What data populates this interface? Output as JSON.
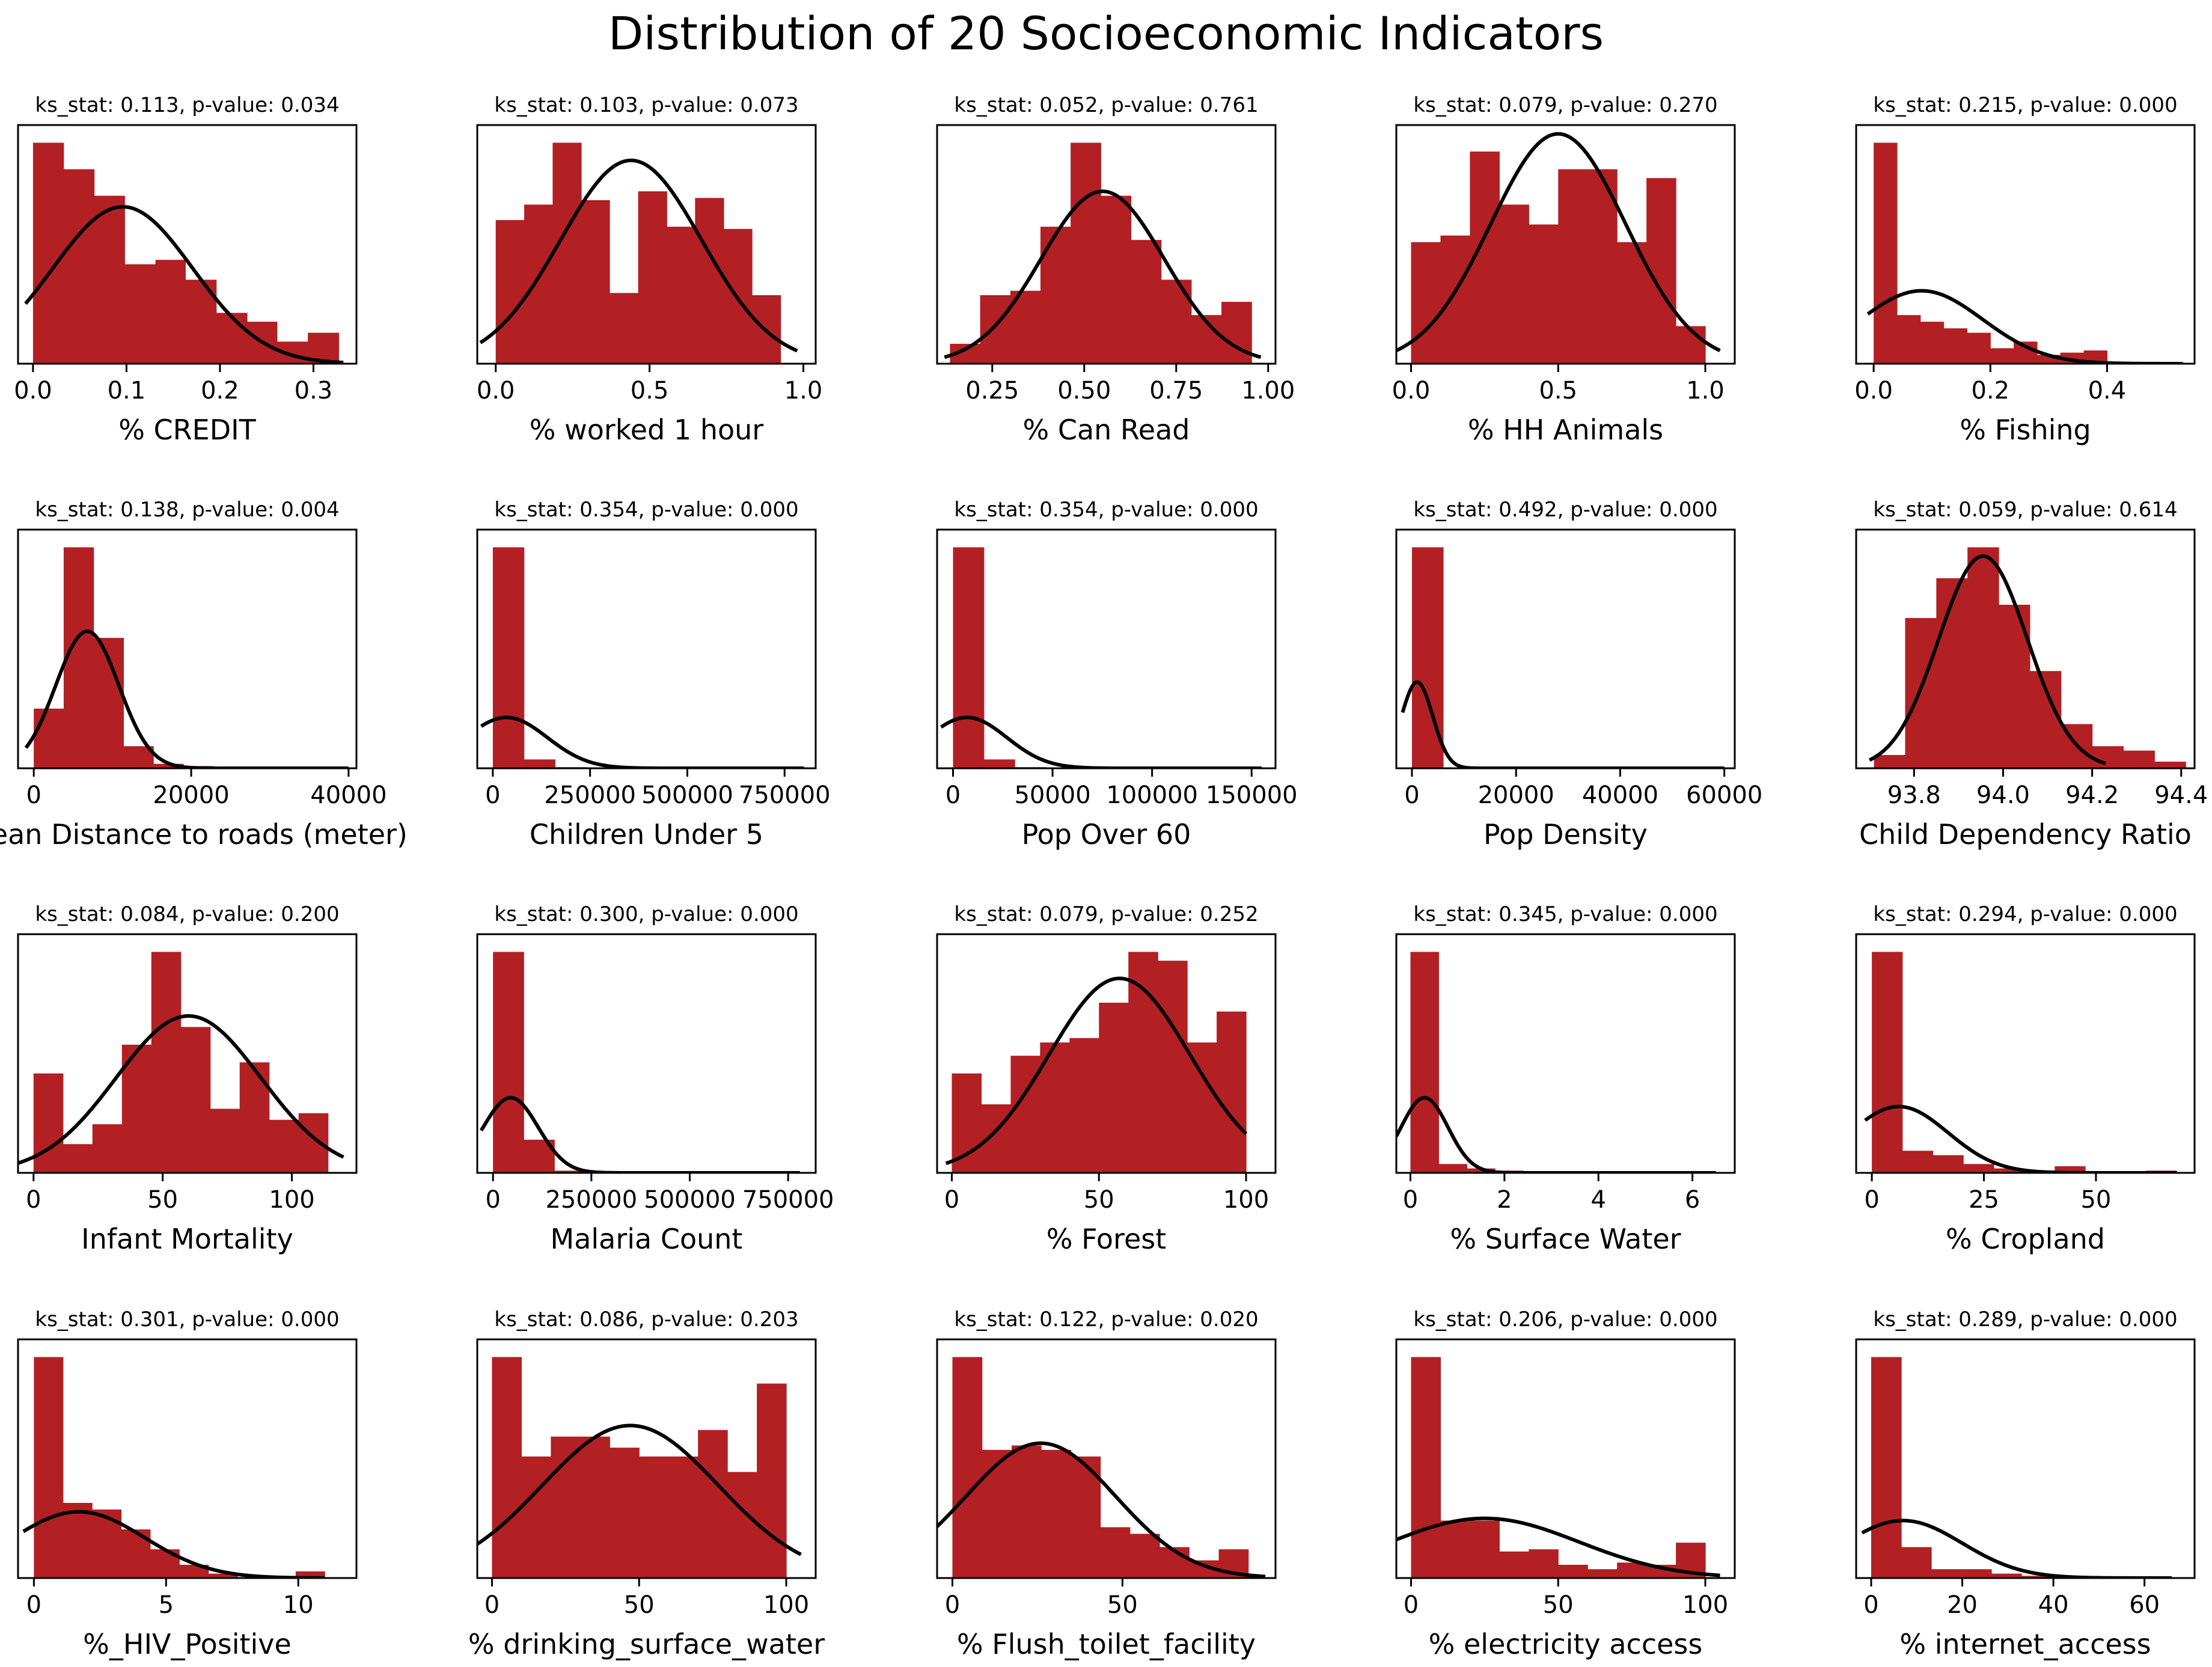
{
  "figure_title": "Distribution of 20 Socioeconomic Indicators",
  "colors": {
    "bar": "#b22024",
    "curve": "#000000",
    "frame": "#000000",
    "background": "#ffffff"
  },
  "chart_data": [
    {
      "type": "bar",
      "subtitle": "ks_stat: 0.113, p-value: 0.034",
      "xlabel": "% CREDIT",
      "xlim": [
        -0.016,
        0.346
      ],
      "ymax": 1.08,
      "ticks": [
        0,
        0.1,
        0.2,
        0.3
      ],
      "tick_labels": [
        "0.0",
        "0.1",
        "0.2",
        "0.3"
      ],
      "bin_edges": [
        0.0,
        0.0327,
        0.0654,
        0.098,
        0.131,
        0.163,
        0.196,
        0.229,
        0.261,
        0.294,
        0.327
      ],
      "values": [
        1.0,
        0.88,
        0.76,
        0.45,
        0.47,
        0.38,
        0.23,
        0.19,
        0.1,
        0.14
      ],
      "curve": {
        "mean": 0.096,
        "sd": 0.075,
        "peak": 0.71,
        "range": [
          -0.008,
          0.332
        ]
      }
    },
    {
      "type": "bar",
      "subtitle": "ks_stat: 0.103, p-value: 0.073",
      "xlabel": "% worked 1 hour",
      "xlim": [
        -0.06,
        1.04
      ],
      "ymax": 1.08,
      "ticks": [
        0,
        0.5,
        1.0
      ],
      "tick_labels": [
        "0.0",
        "0.5",
        "1.0"
      ],
      "bin_edges": [
        0.0,
        0.0926,
        0.185,
        0.278,
        0.37,
        0.463,
        0.556,
        0.648,
        0.741,
        0.833,
        0.926
      ],
      "values": [
        0.65,
        0.72,
        1.0,
        0.74,
        0.32,
        0.78,
        0.62,
        0.75,
        0.61,
        0.31
      ],
      "curve": {
        "mean": 0.44,
        "sd": 0.23,
        "peak": 0.92,
        "range": [
          -0.05,
          0.98
        ]
      }
    },
    {
      "type": "bar",
      "subtitle": "ks_stat: 0.052, p-value: 0.761",
      "xlabel": "% Can Read",
      "xlim": [
        0.1,
        1.02
      ],
      "ymax": 1.08,
      "ticks": [
        0.25,
        0.5,
        0.75,
        1.0
      ],
      "tick_labels": [
        "0.25",
        "0.50",
        "0.75",
        "1.00"
      ],
      "bin_edges": [
        0.135,
        0.217,
        0.299,
        0.381,
        0.463,
        0.545,
        0.627,
        0.709,
        0.791,
        0.873,
        0.955
      ],
      "values": [
        0.09,
        0.31,
        0.33,
        0.62,
        1.0,
        0.76,
        0.56,
        0.38,
        0.22,
        0.28
      ],
      "curve": {
        "mean": 0.55,
        "sd": 0.168,
        "peak": 0.78,
        "range": [
          0.12,
          0.98
        ]
      }
    },
    {
      "type": "bar",
      "subtitle": "ks_stat: 0.079, p-value: 0.270",
      "xlabel": "% HH Animals",
      "xlim": [
        -0.05,
        1.1
      ],
      "ymax": 1.08,
      "ticks": [
        0,
        0.5,
        1.0
      ],
      "tick_labels": [
        "0.0",
        "0.5",
        "1.0"
      ],
      "bin_edges": [
        0.0,
        0.1,
        0.2,
        0.3,
        0.4,
        0.5,
        0.6,
        0.7,
        0.8,
        0.9,
        1.0
      ],
      "values": [
        0.55,
        0.58,
        0.96,
        0.72,
        0.63,
        0.88,
        0.88,
        0.55,
        0.84,
        0.17
      ],
      "curve": {
        "mean": 0.5,
        "sd": 0.23,
        "peak": 1.04,
        "range": [
          -0.05,
          1.05
        ]
      }
    },
    {
      "type": "bar",
      "subtitle": "ks_stat: 0.215, p-value: 0.000",
      "xlabel": "% Fishing",
      "xlim": [
        -0.03,
        0.55
      ],
      "ymax": 1.08,
      "ticks": [
        0,
        0.2,
        0.4
      ],
      "tick_labels": [
        "0.0",
        "0.2",
        "0.4"
      ],
      "bin_edges": [
        0.0,
        0.04,
        0.08,
        0.12,
        0.16,
        0.2,
        0.24,
        0.28,
        0.32,
        0.36,
        0.4
      ],
      "values": [
        1.0,
        0.22,
        0.19,
        0.16,
        0.14,
        0.07,
        0.1,
        0.04,
        0.05,
        0.06
      ],
      "curve": {
        "mean": 0.082,
        "sd": 0.105,
        "peak": 0.33,
        "range": [
          -0.01,
          0.53
        ]
      }
    },
    {
      "type": "bar",
      "subtitle": "ks_stat: 0.138, p-value: 0.004",
      "xlabel": "Mean Distance to roads (meter)",
      "xlim": [
        -2000,
        41000
      ],
      "ymax": 1.08,
      "ticks": [
        0,
        20000,
        40000
      ],
      "tick_labels": [
        "0",
        "20000",
        "40000"
      ],
      "bin_edges": [
        0,
        3800,
        7600,
        11400,
        15200,
        19000,
        22800,
        26600,
        30400,
        34200,
        38000
      ],
      "values": [
        0.27,
        1.0,
        0.59,
        0.1,
        0.02,
        0.01,
        0.0,
        0.0,
        0.0,
        0.005
      ],
      "curve": {
        "mean": 6800,
        "sd": 4000,
        "peak": 0.62,
        "range": [
          -1000,
          40000
        ]
      }
    },
    {
      "type": "bar",
      "subtitle": "ks_stat: 0.354, p-value: 0.000",
      "xlabel": "Children Under 5",
      "xlim": [
        -40000,
        830000
      ],
      "ymax": 1.08,
      "ticks": [
        0,
        250000,
        500000,
        750000
      ],
      "tick_labels": [
        "0",
        "250000",
        "500000",
        "750000"
      ],
      "bin_edges": [
        0,
        80000,
        160000,
        240000,
        320000,
        400000,
        480000,
        560000,
        640000,
        720000,
        800000
      ],
      "values": [
        1.0,
        0.04,
        0.005,
        0.0,
        0.0,
        0.0,
        0.0,
        0.0,
        0.0,
        0.006
      ],
      "curve": {
        "mean": 35000,
        "sd": 105000,
        "peak": 0.23,
        "range": [
          -30000,
          800000
        ]
      }
    },
    {
      "type": "bar",
      "subtitle": "ks_stat: 0.354, p-value: 0.000",
      "xlabel": "Pop Over 60",
      "xlim": [
        -8000,
        162000
      ],
      "ymax": 1.08,
      "ticks": [
        0,
        50000,
        100000,
        150000
      ],
      "tick_labels": [
        "0",
        "50000",
        "100000",
        "150000"
      ],
      "bin_edges": [
        0,
        15500,
        31000,
        46500,
        62000,
        77500,
        93000,
        108500,
        124000,
        139500,
        155000
      ],
      "values": [
        1.0,
        0.04,
        0.005,
        0.0,
        0.0,
        0.0,
        0.0,
        0.0,
        0.0,
        0.006
      ],
      "curve": {
        "mean": 7000,
        "sd": 20000,
        "peak": 0.23,
        "range": [
          -6000,
          155000
        ]
      }
    },
    {
      "type": "bar",
      "subtitle": "ks_stat: 0.492, p-value: 0.000",
      "xlabel": "Pop Density",
      "xlim": [
        -3000,
        62000
      ],
      "ymax": 1.08,
      "ticks": [
        0,
        20000,
        40000,
        60000
      ],
      "tick_labels": [
        "0",
        "20000",
        "40000",
        "60000"
      ],
      "bin_edges": [
        0,
        6000,
        12000,
        18000,
        24000,
        30000,
        36000,
        42000,
        48000,
        54000,
        60000
      ],
      "values": [
        1.0,
        0.0,
        0.0,
        0.0,
        0.0,
        0.0,
        0.0,
        0.0,
        0.0,
        0.0
      ],
      "curve": {
        "mean": 1000,
        "sd": 3000,
        "peak": 0.39,
        "range": [
          -1800,
          60000
        ]
      }
    },
    {
      "type": "bar",
      "subtitle": "ks_stat: 0.059, p-value: 0.614",
      "xlabel": "Child Dependency Ratio",
      "xlim": [
        93.67,
        94.43
      ],
      "ymax": 1.08,
      "ticks": [
        93.8,
        94.0,
        94.2,
        94.4
      ],
      "tick_labels": [
        "93.8",
        "94.0",
        "94.2",
        "94.4"
      ],
      "bin_edges": [
        93.71,
        93.78,
        93.85,
        93.92,
        93.99,
        94.06,
        94.13,
        94.2,
        94.27,
        94.34,
        94.41
      ],
      "values": [
        0.06,
        0.68,
        0.86,
        1.0,
        0.74,
        0.44,
        0.2,
        0.1,
        0.08,
        0.03
      ],
      "curve": {
        "mean": 93.955,
        "sd": 0.1,
        "peak": 0.96,
        "range": [
          93.7,
          94.23
        ]
      }
    },
    {
      "type": "bar",
      "subtitle": "ks_stat: 0.084, p-value: 0.200",
      "xlabel": "Infant Mortality",
      "xlim": [
        -6,
        125
      ],
      "ymax": 1.08,
      "ticks": [
        0,
        50,
        100
      ],
      "tick_labels": [
        "0",
        "50",
        "100"
      ],
      "bin_edges": [
        0,
        11.4,
        22.8,
        34.2,
        45.6,
        57.0,
        68.4,
        79.8,
        91.2,
        102.6,
        114
      ],
      "values": [
        0.45,
        0.13,
        0.22,
        0.58,
        1.0,
        0.66,
        0.29,
        0.5,
        0.24,
        0.27
      ],
      "curve": {
        "mean": 60,
        "sd": 28,
        "peak": 0.71,
        "range": [
          -6,
          120
        ]
      }
    },
    {
      "type": "bar",
      "subtitle": "ks_stat: 0.300, p-value: 0.000",
      "xlabel": "Malaria Count",
      "xlim": [
        -40000,
        820000
      ],
      "ymax": 1.08,
      "ticks": [
        0,
        250000,
        500000,
        750000
      ],
      "tick_labels": [
        "0",
        "250000",
        "500000",
        "750000"
      ],
      "bin_edges": [
        0,
        78000,
        156000,
        234000,
        312000,
        390000,
        468000,
        546000,
        624000,
        702000,
        780000
      ],
      "values": [
        1.0,
        0.15,
        0.01,
        0.0,
        0.0,
        0.0,
        0.0,
        0.0,
        0.0,
        0.0
      ],
      "curve": {
        "mean": 45000,
        "sd": 70000,
        "peak": 0.34,
        "range": [
          -30000,
          780000
        ]
      }
    },
    {
      "type": "bar",
      "subtitle": "ks_stat: 0.079, p-value: 0.252",
      "xlabel": "% Forest",
      "xlim": [
        -5,
        110
      ],
      "ymax": 1.08,
      "ticks": [
        0,
        50,
        100
      ],
      "tick_labels": [
        "0",
        "50",
        "100"
      ],
      "bin_edges": [
        0,
        10,
        20,
        30,
        40,
        50,
        60,
        70,
        80,
        90,
        100
      ],
      "values": [
        0.45,
        0.31,
        0.53,
        0.59,
        0.61,
        0.77,
        1.0,
        0.96,
        0.59,
        0.73
      ],
      "curve": {
        "mean": 57,
        "sd": 24,
        "peak": 0.88,
        "range": [
          -2,
          100
        ]
      }
    },
    {
      "type": "bar",
      "subtitle": "ks_stat: 0.345, p-value: 0.000",
      "xlabel": "% Surface Water",
      "xlim": [
        -0.3,
        6.9
      ],
      "ymax": 1.08,
      "ticks": [
        0,
        2,
        4,
        6
      ],
      "tick_labels": [
        "0",
        "2",
        "4",
        "6"
      ],
      "bin_edges": [
        0,
        0.6,
        1.2,
        1.8,
        2.4,
        3.0,
        3.6,
        4.2,
        4.8,
        5.4,
        6.0
      ],
      "values": [
        1.0,
        0.04,
        0.02,
        0.01,
        0.0,
        0.0,
        0.0,
        0.0,
        0.0,
        0.005
      ],
      "curve": {
        "mean": 0.3,
        "sd": 0.5,
        "peak": 0.34,
        "range": [
          -0.3,
          6.5
        ]
      }
    },
    {
      "type": "bar",
      "subtitle": "ks_stat: 0.294, p-value: 0.000",
      "xlabel": "% Cropland",
      "xlim": [
        -3.5,
        72
      ],
      "ymax": 1.08,
      "ticks": [
        0,
        25,
        50
      ],
      "tick_labels": [
        "0",
        "25",
        "50"
      ],
      "bin_edges": [
        0,
        6.8,
        13.6,
        20.4,
        27.2,
        34.0,
        40.8,
        47.6,
        54.4,
        61.2,
        68
      ],
      "values": [
        1.0,
        0.1,
        0.08,
        0.04,
        0.02,
        0.01,
        0.03,
        0.0,
        0.0,
        0.01
      ],
      "curve": {
        "mean": 6,
        "sd": 11,
        "peak": 0.3,
        "range": [
          -1.5,
          68
        ]
      }
    },
    {
      "type": "bar",
      "subtitle": "ks_stat: 0.301, p-value: 0.000",
      "xlabel": "%_HIV_Positive",
      "xlim": [
        -0.6,
        12.2
      ],
      "ymax": 1.08,
      "ticks": [
        0,
        5,
        10
      ],
      "tick_labels": [
        "0",
        "5",
        "10"
      ],
      "bin_edges": [
        0,
        1.1,
        2.2,
        3.3,
        4.4,
        5.5,
        6.6,
        7.7,
        8.8,
        9.9,
        11
      ],
      "values": [
        1.0,
        0.34,
        0.31,
        0.22,
        0.13,
        0.06,
        0.02,
        0.0,
        0.0,
        0.03
      ],
      "curve": {
        "mean": 1.7,
        "sd": 2.5,
        "peak": 0.3,
        "range": [
          -0.4,
          11
        ]
      }
    },
    {
      "type": "bar",
      "subtitle": "ks_stat: 0.086, p-value: 0.203",
      "xlabel": "% drinking_surface_water",
      "xlim": [
        -5,
        110
      ],
      "ymax": 1.08,
      "ticks": [
        0,
        50,
        100
      ],
      "tick_labels": [
        "0",
        "50",
        "100"
      ],
      "bin_edges": [
        0,
        10,
        20,
        30,
        40,
        50,
        60,
        70,
        80,
        90,
        100
      ],
      "values": [
        1.0,
        0.55,
        0.64,
        0.64,
        0.59,
        0.55,
        0.55,
        0.67,
        0.48,
        0.88
      ],
      "curve": {
        "mean": 47,
        "sd": 30,
        "peak": 0.69,
        "range": [
          -5,
          105
        ]
      }
    },
    {
      "type": "bar",
      "subtitle": "ks_stat: 0.122, p-value: 0.020",
      "xlabel": "% Flush_toilet_facility",
      "xlim": [
        -4.5,
        95
      ],
      "ymax": 1.08,
      "ticks": [
        0,
        50
      ],
      "tick_labels": [
        "0",
        "50"
      ],
      "bin_edges": [
        0,
        8.7,
        17.4,
        26.1,
        34.8,
        43.5,
        52.2,
        60.9,
        69.6,
        78.3,
        87
      ],
      "values": [
        1.0,
        0.58,
        0.6,
        0.58,
        0.55,
        0.23,
        0.2,
        0.14,
        0.08,
        0.13
      ],
      "curve": {
        "mean": 26,
        "sd": 22,
        "peak": 0.61,
        "range": [
          -5,
          92
        ]
      }
    },
    {
      "type": "bar",
      "subtitle": "ks_stat: 0.206, p-value: 0.000",
      "xlabel": "% electricity access",
      "xlim": [
        -5,
        110
      ],
      "ymax": 1.08,
      "ticks": [
        0,
        50,
        100
      ],
      "tick_labels": [
        "0",
        "50",
        "100"
      ],
      "bin_edges": [
        0,
        10,
        20,
        30,
        40,
        50,
        60,
        70,
        80,
        90,
        100
      ],
      "values": [
        1.0,
        0.26,
        0.26,
        0.12,
        0.13,
        0.06,
        0.04,
        0.07,
        0.06,
        0.16
      ],
      "curve": {
        "mean": 25,
        "sd": 32,
        "peak": 0.27,
        "range": [
          -5,
          105
        ]
      }
    },
    {
      "type": "bar",
      "subtitle": "ks_stat: 0.289, p-value: 0.000",
      "xlabel": "% internet_access",
      "xlim": [
        -3.3,
        71
      ],
      "ymax": 1.08,
      "ticks": [
        0,
        20,
        40,
        60
      ],
      "tick_labels": [
        "0",
        "20",
        "40",
        "60"
      ],
      "bin_edges": [
        0,
        6.6,
        13.2,
        19.8,
        26.4,
        33.0,
        39.6,
        46.2,
        52.8,
        59.4,
        66
      ],
      "values": [
        1.0,
        0.14,
        0.04,
        0.04,
        0.02,
        0.01,
        0.01,
        0.0,
        0.0,
        0.005
      ],
      "curve": {
        "mean": 7,
        "sd": 13,
        "peak": 0.26,
        "range": [
          -2,
          66
        ]
      }
    }
  ]
}
